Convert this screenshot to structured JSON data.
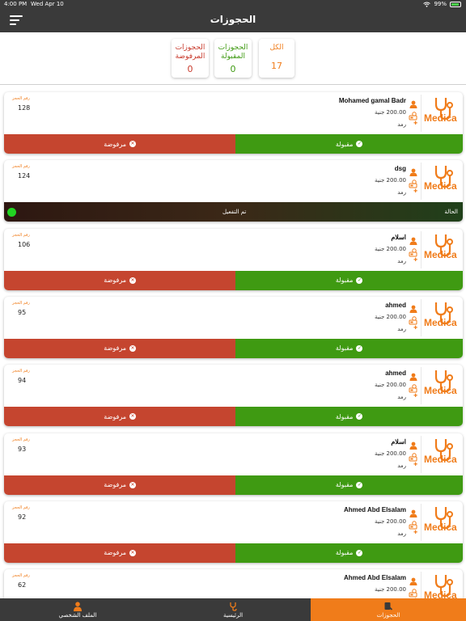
{
  "status_bar": {
    "time": "4:00 PM",
    "date": "Wed Apr 10",
    "battery": "99%"
  },
  "nav": {
    "title": "الحجوزات"
  },
  "summary": {
    "all": {
      "label": "الكل",
      "value": "17"
    },
    "accepted": {
      "label": "الحجوزات المقبولة",
      "value": "0"
    },
    "rejected": {
      "label": "الحجوزات المرفوضة",
      "value": "0"
    }
  },
  "labels": {
    "booking_number": "رقم الحجز",
    "accept": "مقبولة",
    "reject": "مرفوضة",
    "status": "الحالة",
    "activated": "تم التفعيل",
    "brand": "Medica"
  },
  "bookings": [
    {
      "name": "Mohamed gamal Badr",
      "price": "200.00 جنية",
      "type": "رمد",
      "number": "128",
      "state": "pending"
    },
    {
      "name": "dsg",
      "price": "200.00 جنية",
      "type": "رمد",
      "number": "124",
      "state": "activated"
    },
    {
      "name": "اسلام",
      "price": "200.00 جنية",
      "type": "رمد",
      "number": "106",
      "state": "pending"
    },
    {
      "name": "ahmed",
      "price": "200.00 جنية",
      "type": "رمد",
      "number": "95",
      "state": "pending"
    },
    {
      "name": "ahmed",
      "price": "200.00 جنية",
      "type": "رمد",
      "number": "94",
      "state": "pending"
    },
    {
      "name": "اسلام",
      "price": "200.00 جنية",
      "type": "رمد",
      "number": "93",
      "state": "pending"
    },
    {
      "name": "Ahmed Abd Elsalam",
      "price": "200.00 جنية",
      "type": "رمد",
      "number": "92",
      "state": "pending"
    },
    {
      "name": "Ahmed Abd Elsalam",
      "price": "200.00 جنية",
      "type": "رمد",
      "number": "62",
      "state": "pending"
    }
  ],
  "tabs": [
    {
      "label": "الملف الشخصي",
      "icon": "person-icon",
      "active": false
    },
    {
      "label": "الرئيسية",
      "icon": "stethoscope-icon",
      "active": false
    },
    {
      "label": "الحجوزات",
      "icon": "bookings-icon",
      "active": true
    }
  ],
  "colors": {
    "accent": "#f07c1a",
    "accept": "#3f9a12",
    "reject": "#c5452f",
    "bar": "#3a3a3a"
  }
}
